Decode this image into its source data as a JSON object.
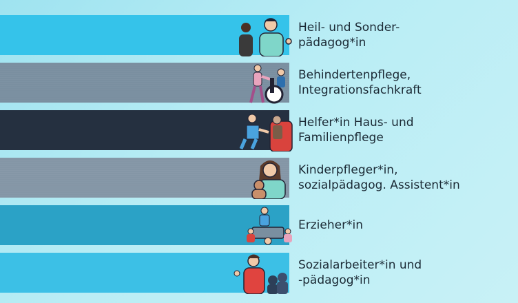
{
  "rows": [
    {
      "lines": [
        "Heil- und Sonder-",
        "pädagog*in"
      ],
      "icon": "teacher-child-icon",
      "color": "#35c3ea"
    },
    {
      "lines": [
        "Behindertenpflege,",
        "Integrationsfachkraft"
      ],
      "icon": "wheelchair-care-icon",
      "color": "#7a8fa0"
    },
    {
      "lines": [
        "Helfer*in Haus- und",
        "Familienpflege"
      ],
      "icon": "home-care-icon",
      "color": "#253040"
    },
    {
      "lines": [
        "Kinderpfleger*in,",
        "sozialpädagog. Assistent*in"
      ],
      "icon": "parent-baby-icon",
      "color": "#8496a6"
    },
    {
      "lines": [
        "Erzieher*in"
      ],
      "icon": "group-table-icon",
      "color": "#2ba2c6"
    },
    {
      "lines": [
        "Sozialarbeiter*in und",
        "-pädagog*in"
      ],
      "icon": "social-worker-icon",
      "color": "#3cc0e6"
    }
  ]
}
